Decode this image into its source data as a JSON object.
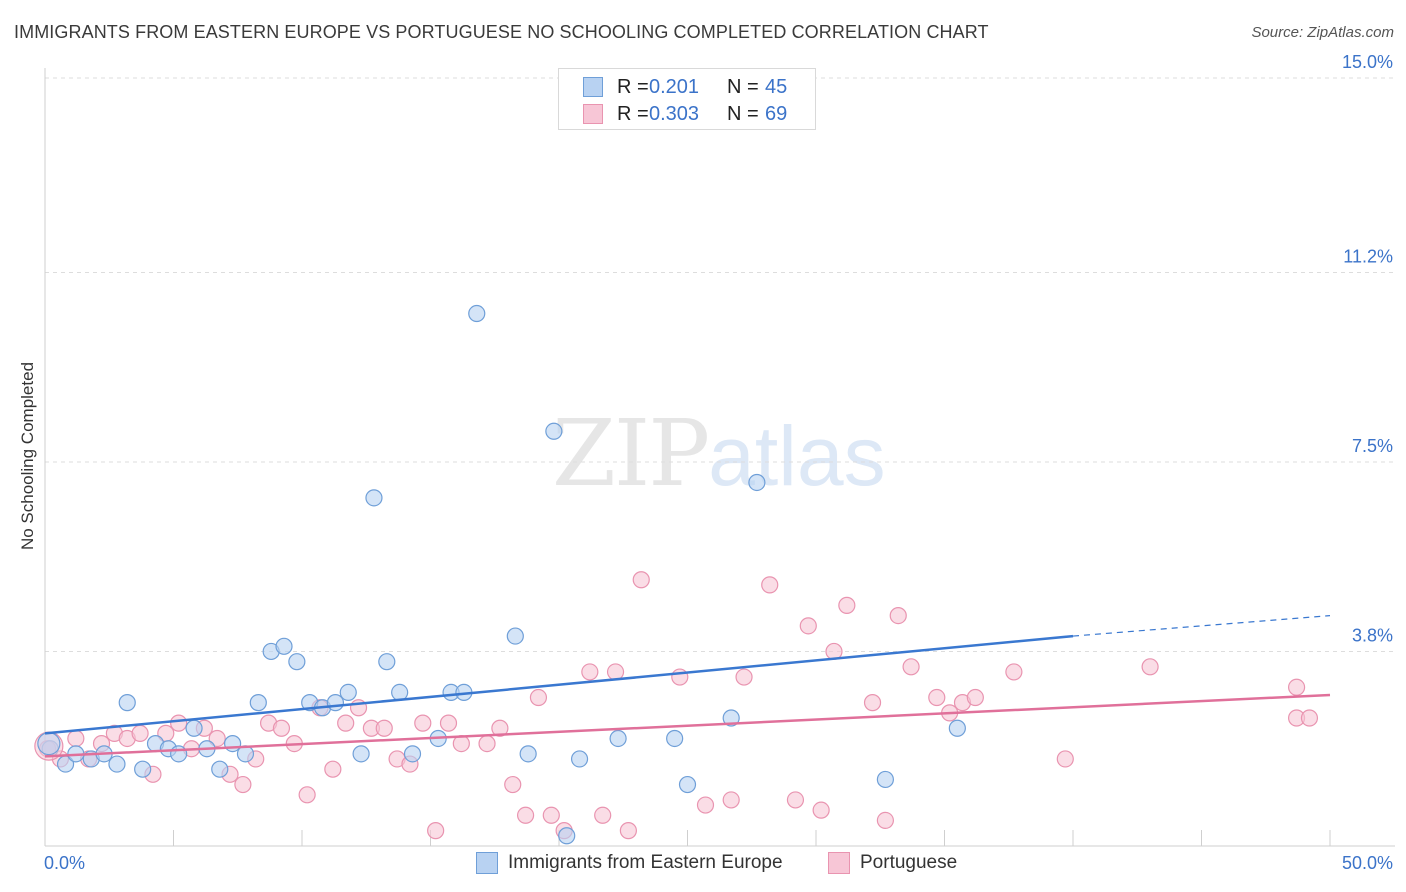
{
  "title": "IMMIGRANTS FROM EASTERN EUROPE VS PORTUGUESE NO SCHOOLING COMPLETED CORRELATION CHART",
  "source": "Source: ZipAtlas.com",
  "watermark": {
    "zip": "ZIP",
    "atlas": "atlas"
  },
  "legend_top": [
    {
      "r_label": "R =",
      "r_value": "0.201",
      "n_label": "N =",
      "n_value": "45"
    },
    {
      "r_label": "R =",
      "r_value": "0.303",
      "n_label": "N =",
      "n_value": "69"
    }
  ],
  "legend_bottom": [
    "Immigrants from Eastern Europe",
    "Portuguese"
  ],
  "colors": {
    "blue_fill": "#b8d2f2",
    "blue_stroke": "#6f9fd8",
    "blue_line": "#3a78d0",
    "pink_fill": "#f7c6d6",
    "pink_stroke": "#e994b0",
    "pink_line": "#e0709a",
    "tick_label": "#3b73c9",
    "grid": "#dddddd"
  },
  "chart_data": {
    "type": "scatter",
    "title": "IMMIGRANTS FROM EASTERN EUROPE VS PORTUGUESE NO SCHOOLING COMPLETED CORRELATION CHART",
    "xlabel": "",
    "ylabel": "No Schooling Completed",
    "xlim": [
      0,
      50
    ],
    "ylim": [
      0,
      15
    ],
    "x_tick_labels": [
      "0.0%",
      "50.0%"
    ],
    "y_ticks": [
      3.8,
      7.5,
      11.2,
      15.0
    ],
    "y_tick_labels": [
      "3.8%",
      "7.5%",
      "11.2%",
      "15.0%"
    ],
    "grid": "horizontal dashed",
    "series": [
      {
        "name": "Immigrants from Eastern Europe",
        "color": "blue",
        "trend": {
          "x": [
            0,
            40
          ],
          "y": [
            2.2,
            4.1
          ],
          "dashed_to": [
            50,
            4.5
          ]
        },
        "points": [
          [
            0.2,
            1.9
          ],
          [
            0.8,
            1.6
          ],
          [
            1.2,
            1.8
          ],
          [
            1.8,
            1.7
          ],
          [
            2.3,
            1.8
          ],
          [
            2.8,
            1.6
          ],
          [
            3.2,
            2.8
          ],
          [
            3.8,
            1.5
          ],
          [
            4.3,
            2.0
          ],
          [
            4.8,
            1.9
          ],
          [
            5.2,
            1.8
          ],
          [
            5.8,
            2.3
          ],
          [
            6.3,
            1.9
          ],
          [
            6.8,
            1.5
          ],
          [
            7.3,
            2.0
          ],
          [
            7.8,
            1.8
          ],
          [
            8.3,
            2.8
          ],
          [
            8.8,
            3.8
          ],
          [
            9.3,
            3.9
          ],
          [
            9.8,
            3.6
          ],
          [
            10.3,
            2.8
          ],
          [
            10.8,
            2.7
          ],
          [
            11.3,
            2.8
          ],
          [
            11.8,
            3.0
          ],
          [
            12.3,
            1.8
          ],
          [
            12.8,
            6.8
          ],
          [
            13.3,
            3.6
          ],
          [
            13.8,
            3.0
          ],
          [
            14.3,
            1.8
          ],
          [
            15.3,
            2.1
          ],
          [
            15.8,
            3.0
          ],
          [
            16.3,
            3.0
          ],
          [
            16.8,
            10.4
          ],
          [
            18.3,
            4.1
          ],
          [
            18.8,
            1.8
          ],
          [
            19.8,
            8.1
          ],
          [
            20.3,
            0.2
          ],
          [
            20.8,
            1.7
          ],
          [
            22.3,
            2.1
          ],
          [
            24.5,
            2.1
          ],
          [
            25.0,
            1.2
          ],
          [
            26.7,
            2.5
          ],
          [
            27.7,
            7.1
          ],
          [
            32.7,
            1.3
          ],
          [
            35.5,
            2.3
          ]
        ]
      },
      {
        "name": "Portuguese",
        "color": "pink",
        "trend": {
          "x": [
            0,
            50
          ],
          "y": [
            1.75,
            2.95
          ]
        },
        "points": [
          [
            0.1,
            1.9
          ],
          [
            0.6,
            1.7
          ],
          [
            1.2,
            2.1
          ],
          [
            1.7,
            1.7
          ],
          [
            2.2,
            2.0
          ],
          [
            2.7,
            2.2
          ],
          [
            3.2,
            2.1
          ],
          [
            3.7,
            2.2
          ],
          [
            4.2,
            1.4
          ],
          [
            4.7,
            2.2
          ],
          [
            5.2,
            2.4
          ],
          [
            5.7,
            1.9
          ],
          [
            6.2,
            2.3
          ],
          [
            6.7,
            2.1
          ],
          [
            7.2,
            1.4
          ],
          [
            7.7,
            1.2
          ],
          [
            8.2,
            1.7
          ],
          [
            8.7,
            2.4
          ],
          [
            9.2,
            2.3
          ],
          [
            9.7,
            2.0
          ],
          [
            10.2,
            1.0
          ],
          [
            10.7,
            2.7
          ],
          [
            11.2,
            1.5
          ],
          [
            11.7,
            2.4
          ],
          [
            12.2,
            2.7
          ],
          [
            12.7,
            2.3
          ],
          [
            13.2,
            2.3
          ],
          [
            13.7,
            1.7
          ],
          [
            14.2,
            1.6
          ],
          [
            14.7,
            2.4
          ],
          [
            15.2,
            0.3
          ],
          [
            15.7,
            2.4
          ],
          [
            16.2,
            2.0
          ],
          [
            17.2,
            2.0
          ],
          [
            17.7,
            2.3
          ],
          [
            18.2,
            1.2
          ],
          [
            18.7,
            0.6
          ],
          [
            19.2,
            2.9
          ],
          [
            19.7,
            0.6
          ],
          [
            20.2,
            0.3
          ],
          [
            21.2,
            3.4
          ],
          [
            21.7,
            0.6
          ],
          [
            22.2,
            3.4
          ],
          [
            22.7,
            0.3
          ],
          [
            23.2,
            5.2
          ],
          [
            24.7,
            3.3
          ],
          [
            25.7,
            0.8
          ],
          [
            26.7,
            0.9
          ],
          [
            27.2,
            3.3
          ],
          [
            28.2,
            5.1
          ],
          [
            29.2,
            0.9
          ],
          [
            29.7,
            4.3
          ],
          [
            30.2,
            0.7
          ],
          [
            30.7,
            3.8
          ],
          [
            31.2,
            4.7
          ],
          [
            32.2,
            2.8
          ],
          [
            32.7,
            0.5
          ],
          [
            33.2,
            4.5
          ],
          [
            33.7,
            3.5
          ],
          [
            34.7,
            2.9
          ],
          [
            35.2,
            2.6
          ],
          [
            35.7,
            2.8
          ],
          [
            36.2,
            2.9
          ],
          [
            37.7,
            3.4
          ],
          [
            39.7,
            1.7
          ],
          [
            43.0,
            3.5
          ],
          [
            48.7,
            3.1
          ],
          [
            48.7,
            2.5
          ],
          [
            49.2,
            2.5
          ]
        ]
      }
    ]
  }
}
